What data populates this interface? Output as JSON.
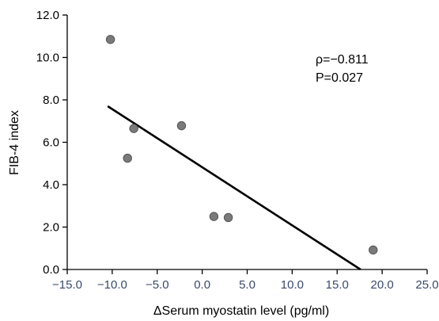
{
  "chart_data": {
    "type": "scatter",
    "title": "",
    "xlabel": "ΔSerum myostatin level (pg/ml)",
    "ylabel": "FIB-4 index",
    "xlim": [
      -15.0,
      25.0
    ],
    "ylim": [
      0.0,
      12.0
    ],
    "x_ticks": [
      "−15.0",
      "−10.0",
      "−5.0",
      "0.0",
      "5.0",
      "10.0",
      "15.0",
      "20.0",
      "25.0"
    ],
    "y_ticks": [
      "0.0",
      "2.0",
      "4.0",
      "6.0",
      "8.0",
      "10.0",
      "12.0"
    ],
    "grid": false,
    "series": [
      {
        "points": [
          {
            "x": -10.2,
            "y": 10.85
          },
          {
            "x": -7.6,
            "y": 6.65
          },
          {
            "x": -8.3,
            "y": 5.25
          },
          {
            "x": -2.3,
            "y": 6.78
          },
          {
            "x": 1.3,
            "y": 2.5
          },
          {
            "x": 2.9,
            "y": 2.45
          },
          {
            "x": 19.0,
            "y": 0.92
          }
        ]
      }
    ],
    "trendline": {
      "x1": -10.5,
      "y1": 7.7,
      "x2": 17.6,
      "y2": 0.0
    },
    "annotations": [
      "ρ=−0.811",
      "P=0.027"
    ],
    "colors": {
      "points": "#7a7a7a",
      "points_stroke": "#555555",
      "line": "#000000",
      "axis": "#000000"
    }
  }
}
